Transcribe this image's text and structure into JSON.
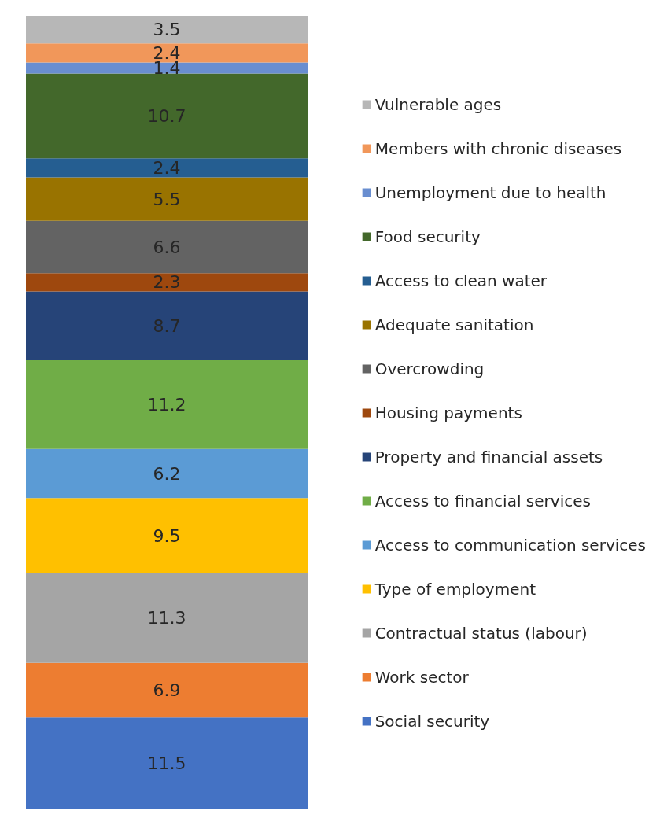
{
  "chart_data": {
    "type": "bar",
    "stacked": true,
    "categories": [
      null
    ],
    "data_labels": true,
    "legend": "right",
    "series": [
      {
        "name": "Social security",
        "color": "#4472c4",
        "values": [
          11.5
        ]
      },
      {
        "name": "Work sector",
        "color": "#ed7d31",
        "values": [
          6.9
        ]
      },
      {
        "name": "Contractual status (labour)",
        "color": "#a5a5a5",
        "values": [
          11.3
        ]
      },
      {
        "name": "Type of employment",
        "color": "#ffc000",
        "values": [
          9.5
        ]
      },
      {
        "name": "Access to communication services",
        "color": "#5b9bd5",
        "values": [
          6.2
        ]
      },
      {
        "name": "Access to financial services",
        "color": "#70ad47",
        "values": [
          11.2
        ]
      },
      {
        "name": "Property and financial assets",
        "color": "#264478",
        "values": [
          8.7
        ]
      },
      {
        "name": "Housing payments",
        "color": "#9e480e",
        "values": [
          2.3
        ]
      },
      {
        "name": "Overcrowding",
        "color": "#636363",
        "values": [
          6.6
        ]
      },
      {
        "name": "Adequate sanitation",
        "color": "#997300",
        "values": [
          5.5
        ]
      },
      {
        "name": "Access to clean water",
        "color": "#255e91",
        "values": [
          2.4
        ]
      },
      {
        "name": "Food security",
        "color": "#43682b",
        "values": [
          10.7
        ]
      },
      {
        "name": "Unemployment due to health",
        "color": "#698ed0",
        "values": [
          1.4
        ]
      },
      {
        "name": "Members with chronic diseases",
        "color": "#f1975a",
        "values": [
          2.4
        ]
      },
      {
        "name": "Vulnerable ages",
        "color": "#b7b7b7",
        "values": [
          3.5
        ]
      }
    ]
  }
}
